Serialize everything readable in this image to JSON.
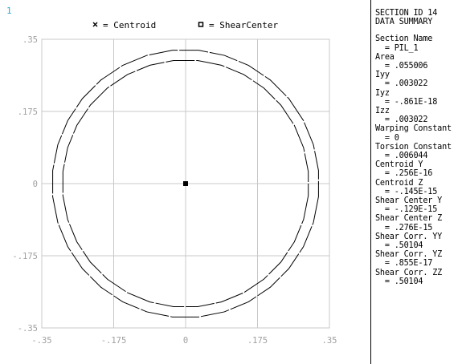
{
  "window": {
    "number": "1"
  },
  "legend": [
    {
      "marker": "×",
      "label": "= Centroid"
    },
    {
      "marker": "▫",
      "label": "= ShearCenter"
    }
  ],
  "summary": {
    "header": [
      "SECTION ID 14",
      "DATA SUMMARY"
    ],
    "items": [
      {
        "label": "Section Name",
        "value": "= PIL_1"
      },
      {
        "label": "Area",
        "value": "= .055006"
      },
      {
        "label": "Iyy",
        "value": "= .003022"
      },
      {
        "label": "Iyz",
        "value": "= -.861E-18"
      },
      {
        "label": "Izz",
        "value": "= .003022"
      },
      {
        "label": "Warping Constant",
        "value": "= 0"
      },
      {
        "label": "Torsion Constant",
        "value": "= .006044"
      },
      {
        "label": "Centroid Y",
        "value": "= .256E-16"
      },
      {
        "label": "Centroid Z",
        "value": "= -.145E-15"
      },
      {
        "label": "Shear Center Y",
        "value": "= -.129E-15"
      },
      {
        "label": "Shear Center Z",
        "value": "= .276E-15"
      },
      {
        "label": "Shear Corr. YY",
        "value": "= .50104"
      },
      {
        "label": "Shear Corr. YZ",
        "value": "= .855E-17"
      },
      {
        "label": "Shear Corr. ZZ",
        "value": "= .50104"
      }
    ]
  },
  "chart_data": {
    "type": "scatter",
    "title": "",
    "xlabel": "",
    "ylabel": "",
    "xlim": [
      -0.35,
      0.35
    ],
    "ylim": [
      -0.35,
      0.35
    ],
    "grid": true,
    "x_ticks": [
      {
        "value": -0.35,
        "label": "-.35"
      },
      {
        "value": -0.175,
        "label": "-.175"
      },
      {
        "value": 0,
        "label": "0"
      },
      {
        "value": 0.175,
        "label": ".175"
      },
      {
        "value": 0.35,
        "label": ".35"
      }
    ],
    "y_ticks": [
      {
        "value": 0.35,
        "label": ".35"
      },
      {
        "value": 0.175,
        "label": ".175"
      },
      {
        "value": 0,
        "label": "0"
      },
      {
        "value": -0.175,
        "label": "-.175"
      },
      {
        "value": -0.35,
        "label": "-.35"
      }
    ],
    "shape": {
      "kind": "hollow-circle",
      "outer_radius": 0.325,
      "inner_radius": 0.3,
      "segments": 32
    },
    "points": [
      {
        "name": "Centroid",
        "y": 0.0,
        "z": 0.0
      },
      {
        "name": "ShearCenter",
        "y": 0.0,
        "z": 0.0
      }
    ],
    "colors": {
      "grid": "#c8c8c8",
      "outline": "#000000",
      "ticks": "#a0a0a0"
    }
  }
}
